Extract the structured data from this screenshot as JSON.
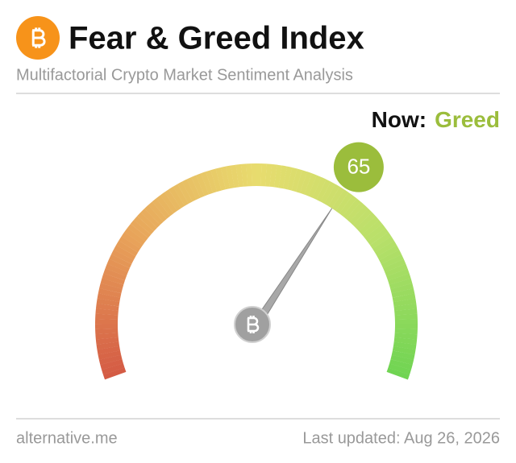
{
  "chart_data": {
    "type": "gauge",
    "title": "Fear & Greed Index",
    "subtitle": "Multifactorial Crypto Market Sentiment Analysis",
    "now_label": "Now:",
    "classification": "Greed",
    "value": 65,
    "ylim": [
      0,
      100
    ],
    "color": "#9bbd3c",
    "source": "alternative.me",
    "last_updated": "Last updated: Aug 26, 2026"
  }
}
